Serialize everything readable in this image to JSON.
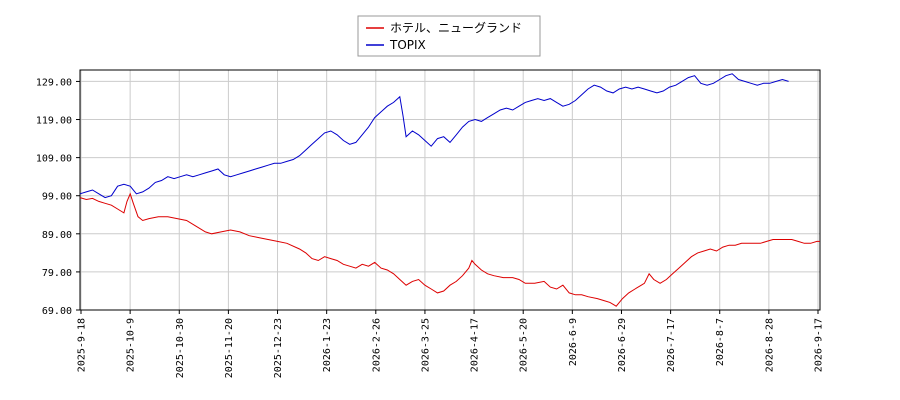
{
  "chart_data": {
    "type": "line",
    "title": "",
    "xlabel": "",
    "ylabel": "",
    "ylim": [
      69.0,
      132.0
    ],
    "yticks": [
      69.0,
      79.0,
      89.0,
      99.0,
      109.0,
      119.0,
      129.0
    ],
    "ytick_labels": [
      "69.00",
      "79.00",
      "89.00",
      "99.00",
      "109.00",
      "119.00",
      "129.00"
    ],
    "xticks": [
      "2025-9-18",
      "2025-10-9",
      "2025-10-30",
      "2025-11-20",
      "2025-12-23",
      "2026-1-23",
      "2026-2-26",
      "2026-3-25",
      "2026-4-17",
      "2026-5-20",
      "2026-6-9",
      "2026-6-29",
      "2026-7-17",
      "2026-8-7",
      "2026-8-28",
      "2026-9-17"
    ],
    "grid": true,
    "legend_position": "top-center",
    "series": [
      {
        "name": "ホテル、ニューグランド",
        "color": "#dd0000",
        "values": [
          [
            0,
            98.5
          ],
          [
            0.2,
            98
          ],
          [
            0.4,
            98.3
          ],
          [
            0.6,
            97.5
          ],
          [
            0.8,
            97
          ],
          [
            1.0,
            96.5
          ],
          [
            1.2,
            95.5
          ],
          [
            1.4,
            94.5
          ],
          [
            1.5,
            97.5
          ],
          [
            1.6,
            99.5
          ],
          [
            1.7,
            97
          ],
          [
            1.85,
            93.5
          ],
          [
            2.0,
            92.5
          ],
          [
            2.2,
            93
          ],
          [
            2.5,
            93.5
          ],
          [
            2.8,
            93.5
          ],
          [
            3.1,
            93
          ],
          [
            3.4,
            92.5
          ],
          [
            3.7,
            91
          ],
          [
            4.0,
            89.5
          ],
          [
            4.2,
            89
          ],
          [
            4.5,
            89.5
          ],
          [
            4.8,
            90
          ],
          [
            5.1,
            89.5
          ],
          [
            5.4,
            88.5
          ],
          [
            5.7,
            88
          ],
          [
            6.0,
            87.5
          ],
          [
            6.3,
            87
          ],
          [
            6.6,
            86.5
          ],
          [
            7.0,
            85
          ],
          [
            7.2,
            84
          ],
          [
            7.4,
            82.5
          ],
          [
            7.6,
            82
          ],
          [
            7.8,
            83
          ],
          [
            8.0,
            82.5
          ],
          [
            8.2,
            82
          ],
          [
            8.4,
            81
          ],
          [
            8.6,
            80.5
          ],
          [
            8.8,
            80
          ],
          [
            9.0,
            81
          ],
          [
            9.2,
            80.5
          ],
          [
            9.4,
            81.5
          ],
          [
            9.6,
            80
          ],
          [
            9.8,
            79.5
          ],
          [
            10.0,
            78.5
          ],
          [
            10.2,
            77
          ],
          [
            10.4,
            75.5
          ],
          [
            10.6,
            76.5
          ],
          [
            10.8,
            77
          ],
          [
            11.0,
            75.5
          ],
          [
            11.2,
            74.5
          ],
          [
            11.4,
            73.5
          ],
          [
            11.6,
            74
          ],
          [
            11.8,
            75.5
          ],
          [
            12.0,
            76.5
          ],
          [
            12.2,
            78
          ],
          [
            12.4,
            80
          ],
          [
            12.5,
            82
          ],
          [
            12.6,
            81
          ],
          [
            12.8,
            79.5
          ],
          [
            13.0,
            78.5
          ],
          [
            13.2,
            78
          ],
          [
            13.5,
            77.5
          ],
          [
            13.8,
            77.5
          ],
          [
            14.0,
            77
          ],
          [
            14.2,
            76
          ],
          [
            14.5,
            76
          ],
          [
            14.8,
            76.5
          ],
          [
            15.0,
            75
          ],
          [
            15.2,
            74.5
          ],
          [
            15.4,
            75.5
          ],
          [
            15.6,
            73.5
          ],
          [
            15.8,
            73
          ],
          [
            16.0,
            73
          ],
          [
            16.2,
            72.5
          ],
          [
            16.5,
            72
          ],
          [
            16.7,
            71.5
          ],
          [
            16.9,
            71
          ],
          [
            17.0,
            70.5
          ],
          [
            17.1,
            70
          ],
          [
            17.3,
            72
          ],
          [
            17.5,
            73.5
          ],
          [
            17.7,
            74.5
          ],
          [
            17.9,
            75.5
          ],
          [
            18.0,
            76
          ],
          [
            18.15,
            78.5
          ],
          [
            18.3,
            77
          ],
          [
            18.5,
            76
          ],
          [
            18.7,
            77
          ],
          [
            18.9,
            78.5
          ],
          [
            19.1,
            80
          ],
          [
            19.3,
            81.5
          ],
          [
            19.5,
            83
          ],
          [
            19.7,
            84
          ],
          [
            19.9,
            84.5
          ],
          [
            20.1,
            85
          ],
          [
            20.3,
            84.5
          ],
          [
            20.5,
            85.5
          ],
          [
            20.7,
            86
          ],
          [
            20.9,
            86
          ],
          [
            21.1,
            86.5
          ],
          [
            21.3,
            86.5
          ],
          [
            21.5,
            86.5
          ],
          [
            21.7,
            86.5
          ],
          [
            21.9,
            87
          ],
          [
            22.1,
            87.5
          ],
          [
            22.3,
            87.5
          ],
          [
            22.5,
            87.5
          ],
          [
            22.7,
            87.5
          ],
          [
            22.9,
            87
          ],
          [
            23.1,
            86.5
          ],
          [
            23.3,
            86.5
          ],
          [
            23.5,
            87
          ],
          [
            23.6,
            87
          ]
        ]
      },
      {
        "name": "TOPIX",
        "color": "#0000cc",
        "values": [
          [
            0,
            99.5
          ],
          [
            0.2,
            100
          ],
          [
            0.4,
            100.5
          ],
          [
            0.6,
            99.5
          ],
          [
            0.8,
            98.5
          ],
          [
            1.0,
            99
          ],
          [
            1.2,
            101.5
          ],
          [
            1.4,
            102
          ],
          [
            1.6,
            101.5
          ],
          [
            1.8,
            99.5
          ],
          [
            2.0,
            100
          ],
          [
            2.2,
            101
          ],
          [
            2.4,
            102.5
          ],
          [
            2.6,
            103
          ],
          [
            2.8,
            104
          ],
          [
            3.0,
            103.5
          ],
          [
            3.2,
            104
          ],
          [
            3.4,
            104.5
          ],
          [
            3.6,
            104
          ],
          [
            3.8,
            104.5
          ],
          [
            4.0,
            105
          ],
          [
            4.2,
            105.5
          ],
          [
            4.4,
            106
          ],
          [
            4.6,
            104.5
          ],
          [
            4.8,
            104
          ],
          [
            5.0,
            104.5
          ],
          [
            5.2,
            105
          ],
          [
            5.4,
            105.5
          ],
          [
            5.6,
            106
          ],
          [
            5.8,
            106.5
          ],
          [
            6.0,
            107
          ],
          [
            6.2,
            107.5
          ],
          [
            6.4,
            107.5
          ],
          [
            6.6,
            108
          ],
          [
            6.8,
            108.5
          ],
          [
            7.0,
            109.5
          ],
          [
            7.2,
            111
          ],
          [
            7.4,
            112.5
          ],
          [
            7.6,
            114
          ],
          [
            7.8,
            115.5
          ],
          [
            8.0,
            116
          ],
          [
            8.2,
            115
          ],
          [
            8.4,
            113.5
          ],
          [
            8.6,
            112.5
          ],
          [
            8.8,
            113
          ],
          [
            9.0,
            115
          ],
          [
            9.2,
            117
          ],
          [
            9.4,
            119.5
          ],
          [
            9.6,
            121
          ],
          [
            9.8,
            122.5
          ],
          [
            10.0,
            123.5
          ],
          [
            10.2,
            125
          ],
          [
            10.3,
            120
          ],
          [
            10.4,
            114.5
          ],
          [
            10.6,
            116
          ],
          [
            10.8,
            115
          ],
          [
            11.0,
            113.5
          ],
          [
            11.2,
            112
          ],
          [
            11.4,
            114
          ],
          [
            11.6,
            114.5
          ],
          [
            11.8,
            113
          ],
          [
            12.0,
            115
          ],
          [
            12.2,
            117
          ],
          [
            12.4,
            118.5
          ],
          [
            12.6,
            119
          ],
          [
            12.8,
            118.5
          ],
          [
            13.0,
            119.5
          ],
          [
            13.2,
            120.5
          ],
          [
            13.4,
            121.5
          ],
          [
            13.6,
            122
          ],
          [
            13.8,
            121.5
          ],
          [
            14.0,
            122.5
          ],
          [
            14.2,
            123.5
          ],
          [
            14.4,
            124
          ],
          [
            14.6,
            124.5
          ],
          [
            14.8,
            124
          ],
          [
            15.0,
            124.5
          ],
          [
            15.2,
            123.5
          ],
          [
            15.4,
            122.5
          ],
          [
            15.6,
            123
          ],
          [
            15.8,
            124
          ],
          [
            16.0,
            125.5
          ],
          [
            16.2,
            127
          ],
          [
            16.4,
            128
          ],
          [
            16.6,
            127.5
          ],
          [
            16.8,
            126.5
          ],
          [
            17.0,
            126
          ],
          [
            17.2,
            127
          ],
          [
            17.4,
            127.5
          ],
          [
            17.6,
            127
          ],
          [
            17.8,
            127.5
          ],
          [
            18.0,
            127
          ],
          [
            18.2,
            126.5
          ],
          [
            18.4,
            126
          ],
          [
            18.6,
            126.5
          ],
          [
            18.8,
            127.5
          ],
          [
            19.0,
            128
          ],
          [
            19.2,
            129
          ],
          [
            19.4,
            130
          ],
          [
            19.6,
            130.5
          ],
          [
            19.8,
            128.5
          ],
          [
            20.0,
            128
          ],
          [
            20.2,
            128.5
          ],
          [
            20.4,
            129.5
          ],
          [
            20.6,
            130.5
          ],
          [
            20.8,
            131
          ],
          [
            21.0,
            129.5
          ],
          [
            21.2,
            129
          ],
          [
            21.4,
            128.5
          ],
          [
            21.6,
            128
          ],
          [
            21.8,
            128.5
          ],
          [
            22.0,
            128.5
          ],
          [
            22.2,
            129
          ],
          [
            22.4,
            129.5
          ],
          [
            22.6,
            129
          ]
        ]
      }
    ]
  }
}
